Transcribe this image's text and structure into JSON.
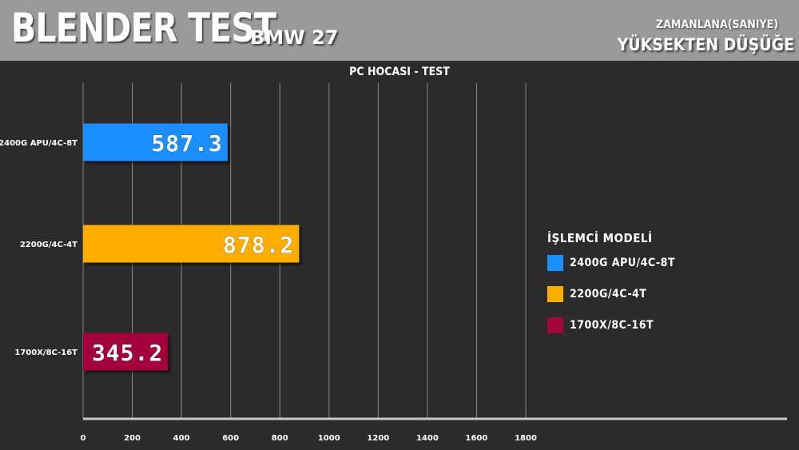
{
  "header": {
    "title": "BLENDER TEST",
    "subtitle": "BMW 27",
    "note_line1": "ZAMANLANA(SANIYE)",
    "note_line2": "YÜKSEKTEN DÜŞÜĞE"
  },
  "colors": {
    "header_bg": "#9a9a9a",
    "background": "#2b2b2b"
  },
  "chart_data": {
    "type": "bar",
    "orientation": "horizontal",
    "title": "PC HOCASI - TEST",
    "categories": [
      "2400G APU/4C-8T",
      "2200G/4C-4T",
      "1700X/8C-16T"
    ],
    "values": [
      587.3,
      878.2,
      345.2
    ],
    "value_labels": [
      "587.3",
      "878.2",
      "345.2"
    ],
    "colors": [
      "#1a8fff",
      "#ffad00",
      "#a3063a"
    ],
    "xlim": [
      0,
      1800
    ],
    "xticks": [
      "0",
      "200",
      "400",
      "600",
      "800",
      "1000",
      "1200",
      "1400",
      "1600",
      "1800"
    ],
    "grid": true,
    "legend": {
      "title": "İŞLEMCİ MODELİ",
      "position": "right",
      "items": [
        "2400G APU/4C-8T",
        "2200G/4C-4T",
        "1700X/8C-16T"
      ]
    }
  }
}
